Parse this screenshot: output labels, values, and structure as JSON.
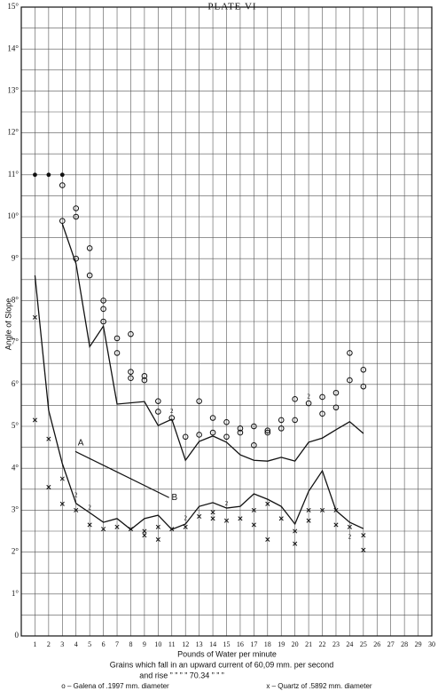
{
  "chart_data": {
    "type": "line",
    "title": "PLATE VI",
    "x_label": "Pounds of Water per minute",
    "y_label": "Angle of Slope",
    "captions": [
      "Grains which fall in an upward current of 60,09 mm. per second",
      "and rise ”  ”   ”   ”   70.34  ”   ”   ”"
    ],
    "xlim": [
      0,
      30
    ],
    "ylim": [
      0,
      15
    ],
    "xticks": [
      1,
      2,
      3,
      4,
      5,
      6,
      7,
      8,
      9,
      10,
      11,
      12,
      13,
      14,
      15,
      16,
      17,
      18,
      19,
      20,
      21,
      22,
      23,
      24,
      25,
      26,
      27,
      28,
      29,
      30
    ],
    "yticks": [
      0,
      {
        "value": 1,
        "label": "1°"
      },
      {
        "value": 2,
        "label": "2°"
      },
      {
        "value": 3,
        "label": "3°"
      },
      {
        "value": 4,
        "label": "4°"
      },
      {
        "value": 5,
        "label": "5°"
      },
      {
        "value": 6,
        "label": "6°"
      },
      {
        "value": 7,
        "label": "7°"
      },
      {
        "value": 8,
        "label": "8°"
      },
      {
        "value": 9,
        "label": "9°"
      },
      {
        "value": 10,
        "label": "10°"
      },
      {
        "value": 11,
        "label": "11°"
      },
      {
        "value": 12,
        "label": "12°"
      },
      {
        "value": 13,
        "label": "13°"
      },
      {
        "value": 14,
        "label": "14°"
      },
      {
        "value": 15,
        "label": "15°"
      }
    ],
    "grid": true,
    "grid_step": 0.5,
    "series": [
      {
        "marker": "line",
        "color": "#111",
        "x": [
          3,
          4,
          5,
          6,
          7,
          9,
          10,
          11,
          12,
          13,
          14,
          15,
          16,
          17,
          18,
          19,
          20,
          21,
          22,
          23,
          24,
          25
        ],
        "values": [
          9.83,
          8.88,
          6.9,
          7.39,
          5.53,
          5.59,
          5.02,
          5.17,
          4.19,
          4.64,
          4.77,
          4.62,
          4.32,
          4.19,
          4.17,
          4.26,
          4.17,
          4.62,
          4.72,
          4.92,
          5.11,
          4.83
        ]
      },
      {
        "marker": "line",
        "color": "#111",
        "x": [
          1,
          2,
          3,
          4,
          5,
          6,
          7,
          8,
          9,
          10,
          11,
          12,
          13,
          14,
          15,
          16,
          17,
          18,
          19,
          20,
          21,
          22,
          23,
          24,
          25
        ],
        "values": [
          8.6,
          5.38,
          4.11,
          3.16,
          2.94,
          2.71,
          2.8,
          2.54,
          2.8,
          2.88,
          2.54,
          2.67,
          3.09,
          3.18,
          3.05,
          3.09,
          3.39,
          3.26,
          3.09,
          2.67,
          3.45,
          3.94,
          2.99,
          2.71,
          2.56
        ]
      },
      {
        "name": "o – Galena of .1997 mm. diameter",
        "marker": "o",
        "color": "#111",
        "x": [
          3,
          3,
          4,
          4,
          4,
          5,
          5,
          6,
          6,
          6,
          7,
          7,
          8,
          8,
          8,
          9,
          9,
          10,
          10,
          11,
          12,
          13,
          13,
          14,
          14,
          15,
          15,
          16,
          16,
          17,
          17,
          18,
          18,
          19,
          19,
          20,
          20,
          21,
          22,
          22,
          23,
          23,
          24,
          24,
          25,
          25
        ],
        "values": [
          10.75,
          9.9,
          10.2,
          10.0,
          9.0,
          9.25,
          8.6,
          8.0,
          7.8,
          7.5,
          7.1,
          6.75,
          7.2,
          6.3,
          6.15,
          6.2,
          6.1,
          5.6,
          5.35,
          5.2,
          4.75,
          5.6,
          4.8,
          5.2,
          4.85,
          5.1,
          4.75,
          4.95,
          4.85,
          5.0,
          4.55,
          4.9,
          4.85,
          5.15,
          4.95,
          5.65,
          5.15,
          5.55,
          5.7,
          5.3,
          5.8,
          5.45,
          6.75,
          6.1,
          6.35,
          5.95
        ]
      },
      {
        "name": "x – Quartz of .5892 mm. diameter",
        "marker": "x",
        "color": "#111",
        "x": [
          1,
          1,
          2,
          2,
          3,
          3,
          4,
          5,
          6,
          7,
          8,
          9,
          9,
          10,
          10,
          11,
          12,
          13,
          14,
          14,
          15,
          16,
          17,
          17,
          18,
          18,
          19,
          20,
          20,
          21,
          21,
          22,
          23,
          23,
          24,
          25,
          25
        ],
        "values": [
          7.6,
          5.15,
          4.7,
          3.55,
          3.75,
          3.15,
          3.0,
          2.65,
          2.55,
          2.6,
          2.55,
          2.4,
          2.5,
          2.3,
          2.6,
          2.55,
          2.6,
          2.85,
          2.95,
          2.8,
          2.75,
          2.8,
          2.65,
          3.0,
          2.3,
          3.15,
          2.8,
          2.5,
          2.2,
          2.75,
          3.0,
          3.0,
          2.65,
          3.0,
          2.6,
          2.4,
          2.05
        ]
      },
      {
        "marker": "*",
        "color": "#111",
        "x": [
          1,
          2,
          3
        ],
        "values": [
          11.0,
          11.0,
          11.0
        ]
      }
    ],
    "annotations": [
      "A",
      "B"
    ],
    "point_notes": [
      {
        "x": 4,
        "y": 3.35,
        "label": "2"
      },
      {
        "x": 5,
        "y": 3.05,
        "label": "2"
      },
      {
        "x": 11,
        "y": 5.35,
        "label": "2"
      },
      {
        "x": 12,
        "y": 2.8,
        "label": "2"
      },
      {
        "x": 15,
        "y": 3.15,
        "label": "2"
      },
      {
        "x": 21,
        "y": 5.7,
        "label": "2"
      },
      {
        "x": 24,
        "y": 2.35,
        "label": "2"
      }
    ]
  }
}
